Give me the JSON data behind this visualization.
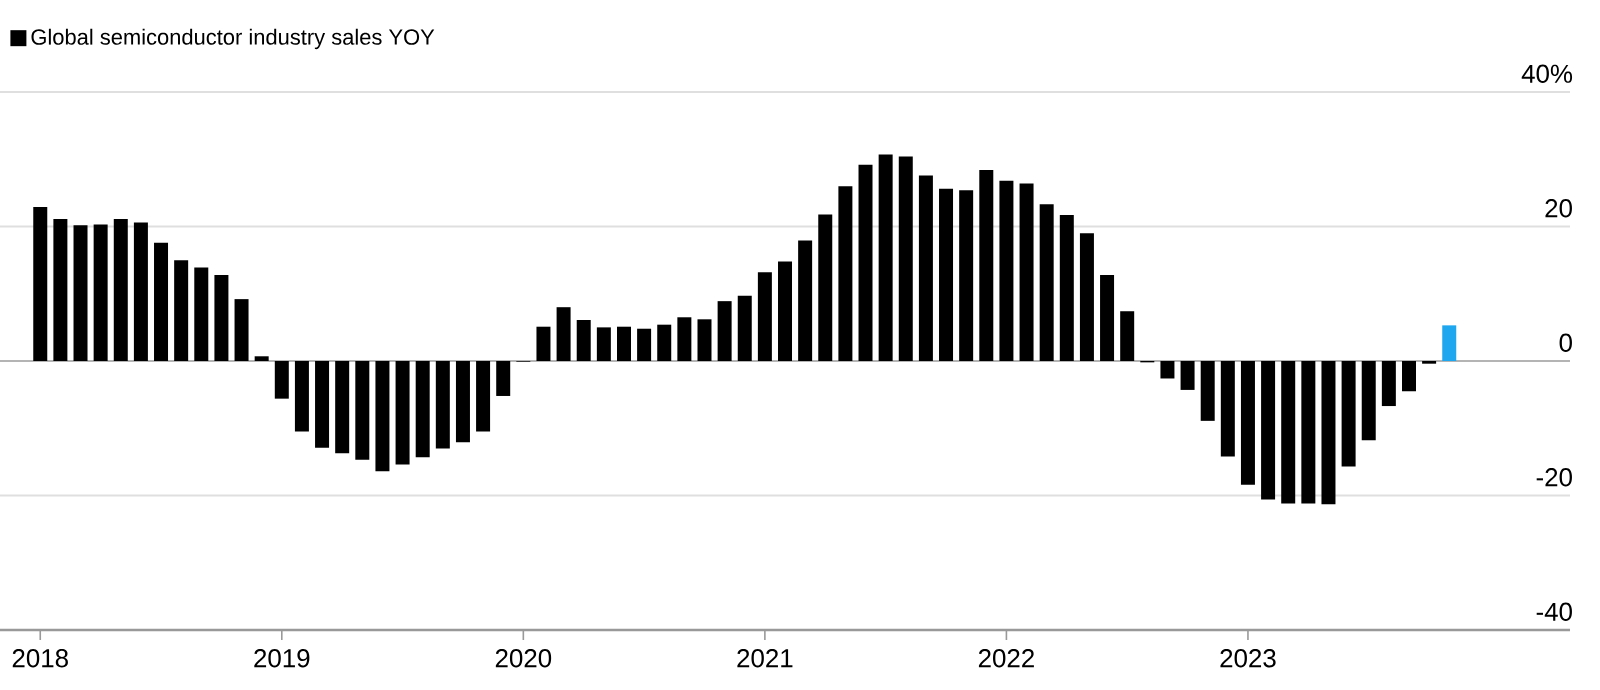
{
  "chart_data": {
    "type": "bar",
    "x": [
      "2018-01",
      "2018-02",
      "2018-03",
      "2018-04",
      "2018-05",
      "2018-06",
      "2018-07",
      "2018-08",
      "2018-09",
      "2018-10",
      "2018-11",
      "2018-12",
      "2019-01",
      "2019-02",
      "2019-03",
      "2019-04",
      "2019-05",
      "2019-06",
      "2019-07",
      "2019-08",
      "2019-09",
      "2019-10",
      "2019-11",
      "2019-12",
      "2020-01",
      "2020-02",
      "2020-03",
      "2020-04",
      "2020-05",
      "2020-06",
      "2020-07",
      "2020-08",
      "2020-09",
      "2020-10",
      "2020-11",
      "2020-12",
      "2021-01",
      "2021-02",
      "2021-03",
      "2021-04",
      "2021-05",
      "2021-06",
      "2021-07",
      "2021-08",
      "2021-09",
      "2021-10",
      "2021-11",
      "2021-12",
      "2022-01",
      "2022-02",
      "2022-03",
      "2022-04",
      "2022-05",
      "2022-06",
      "2022-07",
      "2022-08",
      "2022-09",
      "2022-10",
      "2022-11",
      "2022-12",
      "2023-01",
      "2023-02",
      "2023-03",
      "2023-04",
      "2023-05",
      "2023-06",
      "2023-07",
      "2023-08",
      "2023-09",
      "2023-10",
      "2023-11"
    ],
    "series": [
      {
        "name": "Global semiconductor industry sales YOY",
        "color": "#000000",
        "values": [
          22.9,
          21.1,
          20.2,
          20.3,
          21.1,
          20.6,
          17.6,
          15.0,
          13.9,
          12.8,
          9.2,
          0.7,
          -5.6,
          -10.5,
          -12.9,
          -13.7,
          -14.7,
          -16.4,
          -15.4,
          -14.3,
          -13.0,
          -12.1,
          -10.5,
          -5.2,
          -0.1,
          5.1,
          8.0,
          6.1,
          5.0,
          5.1,
          4.8,
          5.4,
          6.5,
          6.2,
          8.9,
          9.7,
          13.2,
          14.8,
          17.9,
          21.8,
          26.0,
          29.2,
          30.7,
          30.4,
          27.6,
          25.6,
          25.4,
          28.4,
          26.8,
          26.4,
          23.3,
          21.7,
          19.0,
          12.8,
          7.4,
          -0.2,
          -2.6,
          -4.3,
          -8.9,
          -14.2,
          -18.4,
          -20.6,
          -21.2,
          -21.2,
          -21.3,
          -15.7,
          -11.8,
          -6.7,
          -4.5,
          -0.4,
          null
        ]
      },
      {
        "color": "#1ea7ef",
        "values": [
          null,
          null,
          null,
          null,
          null,
          null,
          null,
          null,
          null,
          null,
          null,
          null,
          null,
          null,
          null,
          null,
          null,
          null,
          null,
          null,
          null,
          null,
          null,
          null,
          null,
          null,
          null,
          null,
          null,
          null,
          null,
          null,
          null,
          null,
          null,
          null,
          null,
          null,
          null,
          null,
          null,
          null,
          null,
          null,
          null,
          null,
          null,
          null,
          null,
          null,
          null,
          null,
          null,
          null,
          null,
          null,
          null,
          null,
          null,
          null,
          null,
          null,
          null,
          null,
          null,
          null,
          null,
          null,
          null,
          null,
          5.3
        ]
      }
    ],
    "xlim": [
      "2017-11",
      "2024-05"
    ],
    "xticks": [
      "2018",
      "2019",
      "2020",
      "2021",
      "2022",
      "2023"
    ],
    "ylim": [
      -40,
      40
    ],
    "yticks": [
      {
        "value": 40,
        "label": "40%"
      },
      20,
      0,
      -20,
      -40
    ],
    "grid": "y",
    "legend": "top left"
  }
}
